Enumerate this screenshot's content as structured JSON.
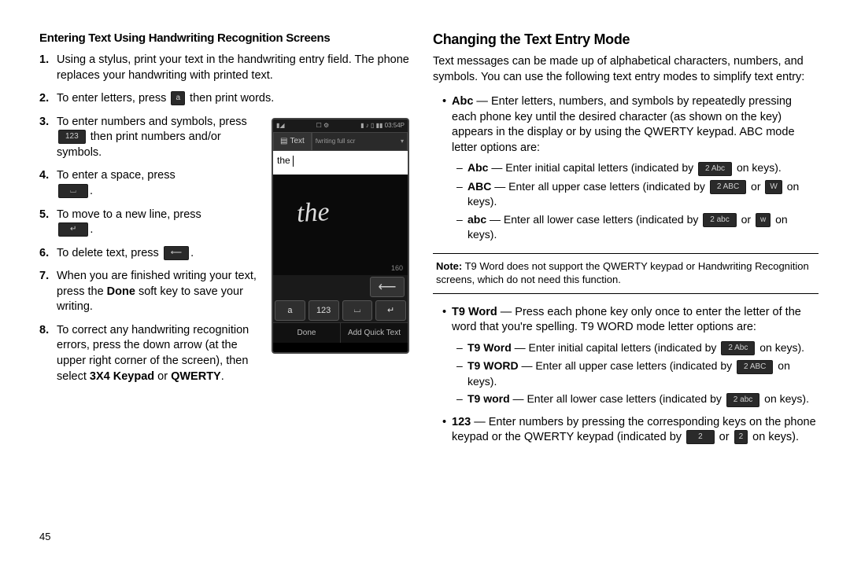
{
  "left": {
    "subheading": "Entering Text Using Handwriting Recognition Screens",
    "steps": {
      "s1": "Using a stylus, print your text in the handwriting entry field. The phone replaces your handwriting with printed text.",
      "s2a": "To enter letters, press ",
      "s2_icon": "a",
      "s2b": " then print words.",
      "s3a": "To enter numbers and symbols, press ",
      "s3_icon": "123",
      "s3b": " then print numbers and/or symbols.",
      "s4a": "To enter a space, press ",
      "s4_icon": "⌴",
      "s4b": ".",
      "s5a": "To move to a new line, press ",
      "s5_icon": "↵",
      "s5b": ".",
      "s6a": "To delete text, press ",
      "s6_icon": "⟵",
      "s6b": ".",
      "s7a": "When you are finished writing your text, press the ",
      "s7_bold": "Done",
      "s7b": " soft key to save your writing.",
      "s8a": "To correct any handwriting recognition errors, press the down arrow (at the upper right corner of the screen), then select ",
      "s8_bold1": "3X4 Keypad",
      "s8_mid": " or ",
      "s8_bold2": "QWERTY",
      "s8_end": "."
    },
    "phone": {
      "status_left": "▮◢",
      "status_icons": "☐ ⚙",
      "status_right": "▮ ♪ ▯ ▮▮ 03:54P",
      "tab_label": "Text",
      "dropdown": "fwriting full scr",
      "dropdown_arrow": "▾",
      "typed": "the",
      "handwriting": "the",
      "char_count": "160",
      "delete": "⟵",
      "key_a": "a",
      "key_123": "123",
      "key_space": "⌴",
      "key_enter": "↵",
      "btn_done": "Done",
      "btn_quick": "Add Quick Text"
    }
  },
  "right": {
    "heading": "Changing the Text Entry Mode",
    "intro": "Text messages can be made up of alphabetical characters, numbers, and symbols. You can use the following text entry modes to simplify text entry:",
    "abc": {
      "lead_b": "Abc",
      "lead": " — Enter letters, numbers, and symbols by repeatedly pressing each phone key until the desired character (as shown on the key) appears in the display or by using the QWERTY keypad. ABC mode letter options are:",
      "r1_b": "Abc",
      "r1_a": " — Enter initial capital letters (indicated by ",
      "r1_icon": "2 Abc",
      "r1_c": " on keys).",
      "r2_b": "ABC",
      "r2_a": " — Enter all upper case letters (indicated by ",
      "r2_icon1": "2 ABC",
      "r2_mid": " or ",
      "r2_icon2": "W",
      "r2_c": " on keys).",
      "r3_b": "abc",
      "r3_a": " — Enter all lower case letters (indicated by ",
      "r3_icon1": "2 abc",
      "r3_mid": " or ",
      "r3_icon2": "w",
      "r3_c": " on keys)."
    },
    "note_b": "Note:",
    "note": " T9 Word does not support the QWERTY keypad or Handwriting Recognition screens, which do not need this function.",
    "t9": {
      "lead_b": "T9 Word",
      "lead": " — Press each phone key only once to enter the letter of the word that you're spelling. T9 WORD mode letter options are:",
      "r1_b": "T9 Word",
      "r1_a": " — Enter initial capital letters (indicated by ",
      "r1_icon": "2 Abc",
      "r1_c": " on keys).",
      "r2_b": "T9 WORD",
      "r2_a": " — Enter all upper case letters (indicated by ",
      "r2_icon": "2 ABC",
      "r2_c": " on keys).",
      "r3_b": "T9 word",
      "r3_a": " — Enter all lower case letters (indicated by ",
      "r3_icon": "2 abc",
      "r3_c": " on keys)."
    },
    "n123": {
      "lead_b": "123",
      "lead_a": " — Enter numbers by pressing the corresponding keys on the phone keypad or the QWERTY keypad (indicated by ",
      "icon1": "2",
      "mid": " or ",
      "icon2": "2",
      "lead_c": " on keys)."
    }
  },
  "page_number": "45"
}
